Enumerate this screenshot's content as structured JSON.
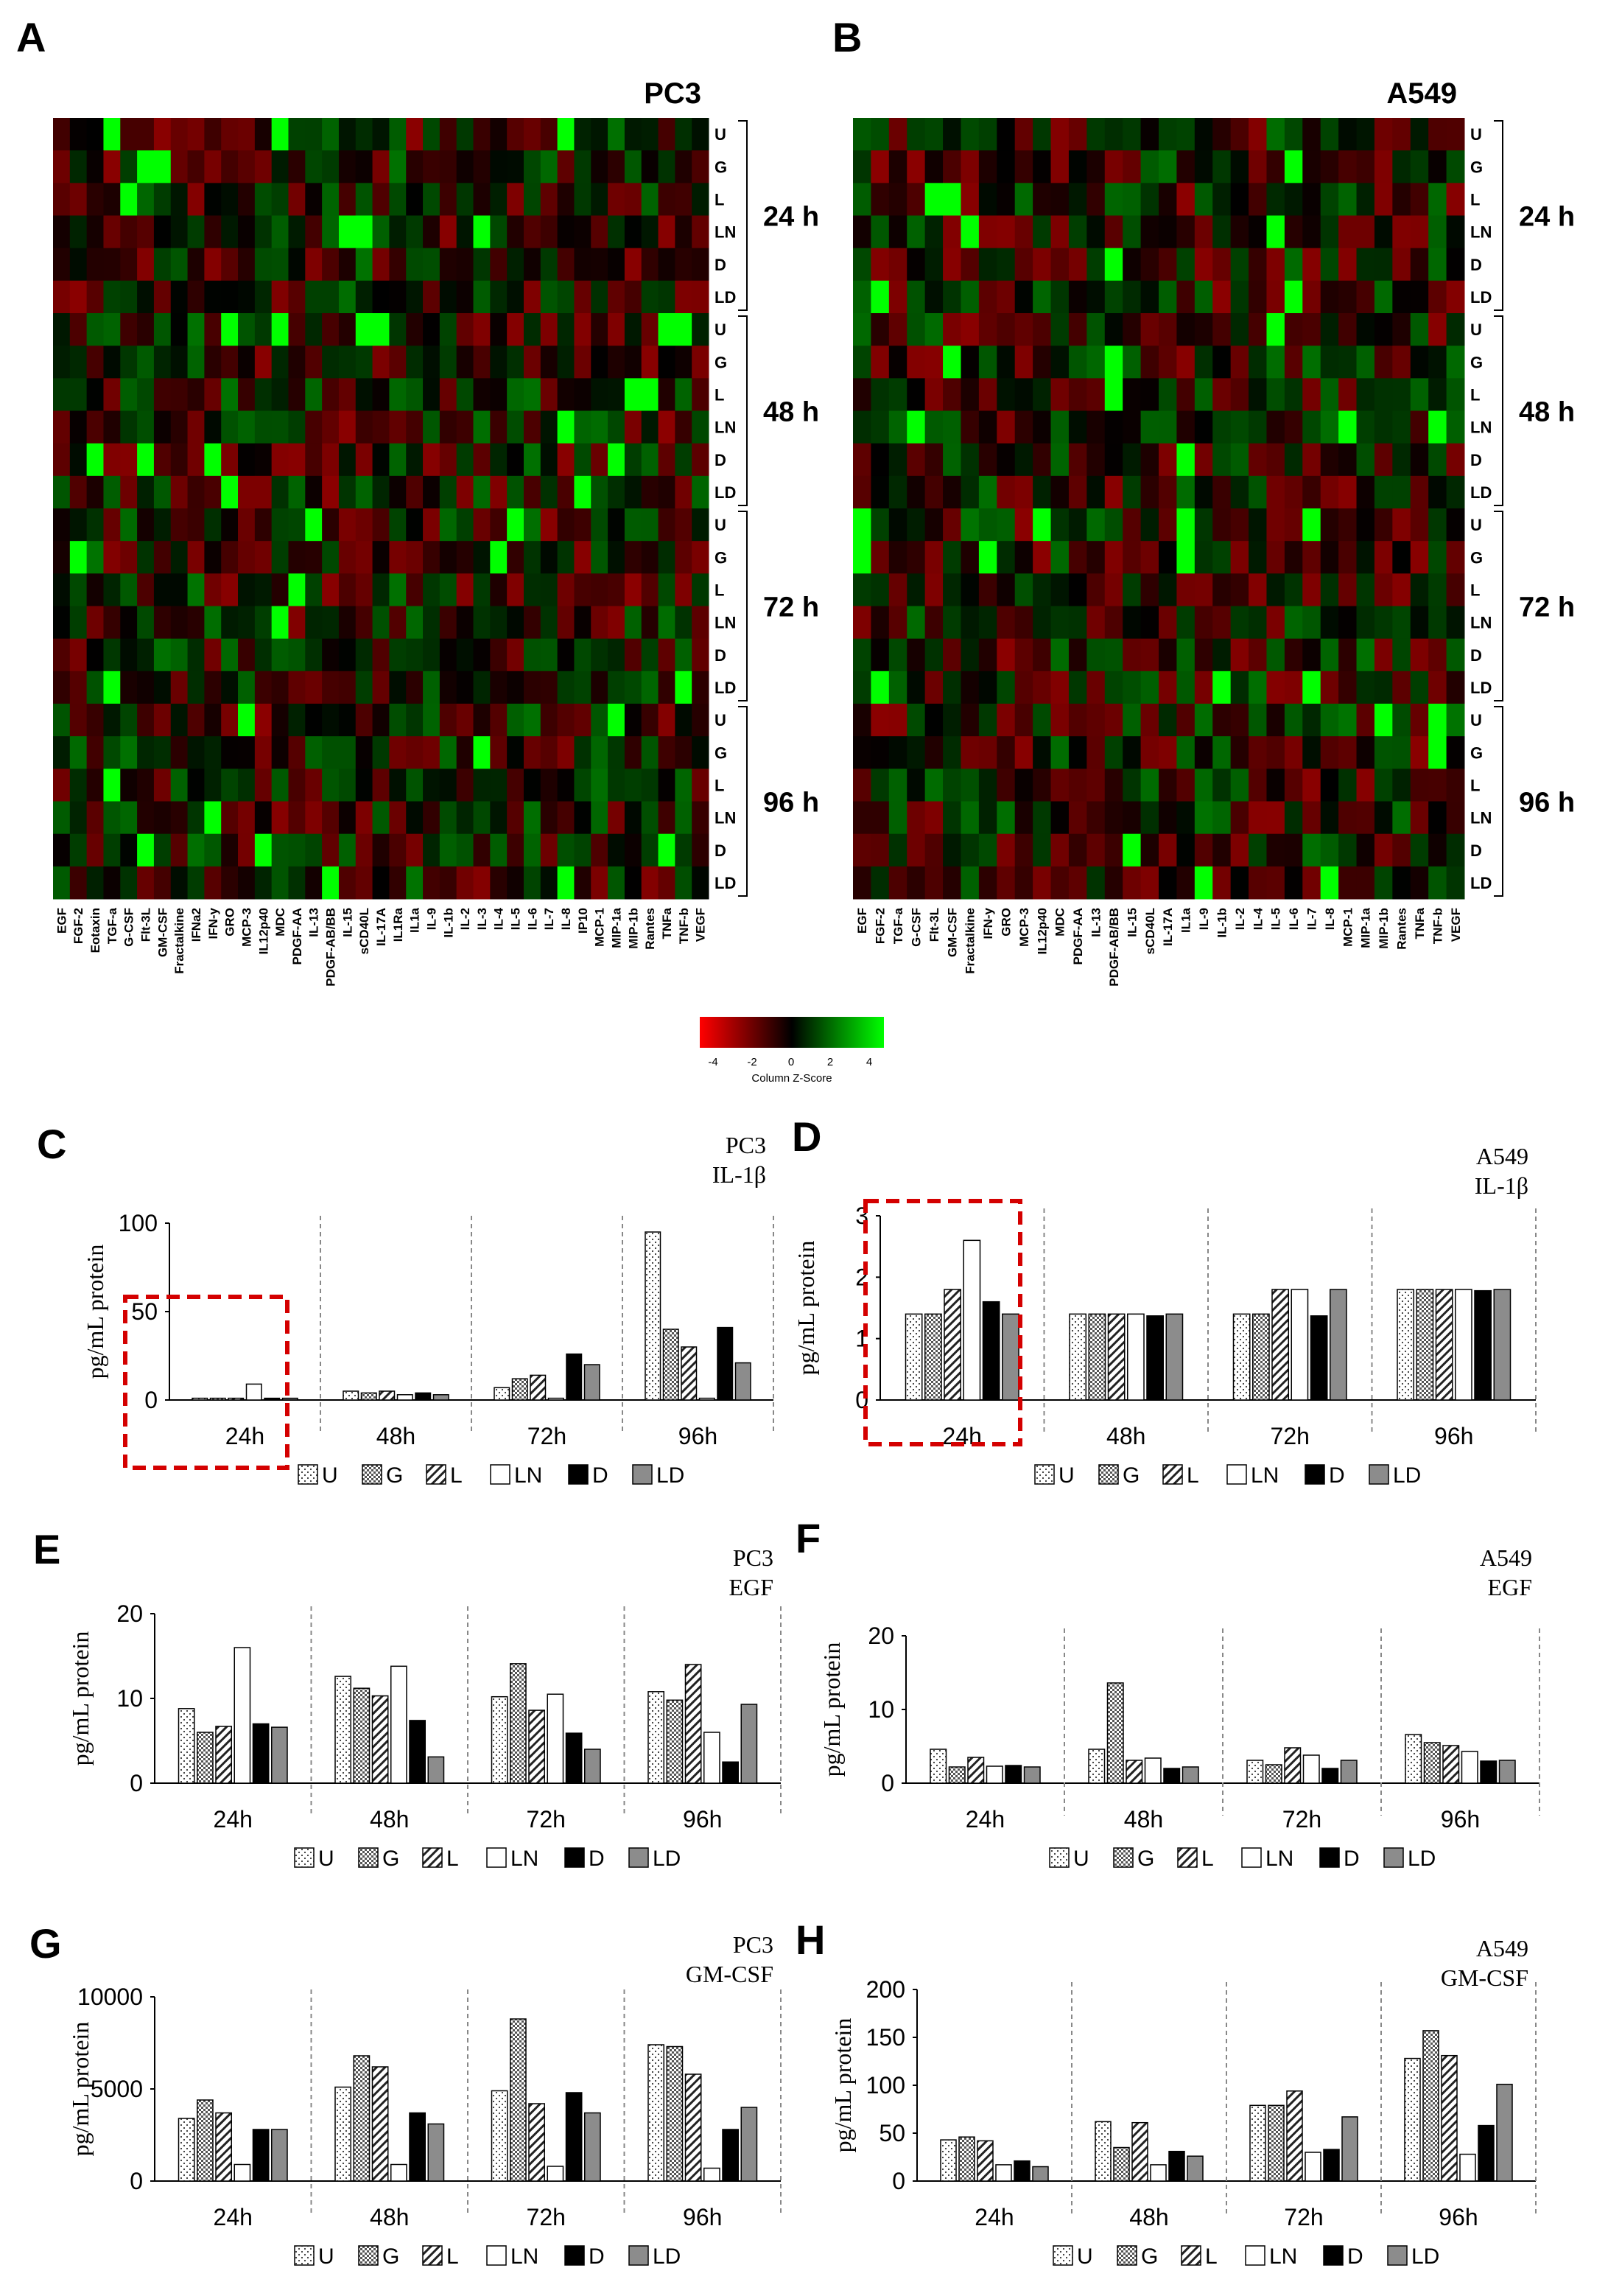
{
  "panel_letters": [
    "A",
    "B",
    "C",
    "D",
    "E",
    "F",
    "G",
    "H"
  ],
  "colors": {
    "low": "#ff0000",
    "mid": "#000000",
    "high": "#00ff00",
    "box": "#d40000",
    "grid_dash": "#888888",
    "gray_bar": "#8c8c8c"
  },
  "legend_labels": [
    "U",
    "G",
    "L",
    "LN",
    "D",
    "LD"
  ],
  "legend_patterns": [
    "dots",
    "checker",
    "hatch",
    "white",
    "black",
    "gray"
  ],
  "colorbar": {
    "ticks": [
      "-4",
      "-2",
      "0",
      "2",
      "4"
    ],
    "label": "Column Z-Score"
  },
  "chart_data": [
    {
      "type": "heatmap",
      "panel": "A",
      "title": "PC3",
      "row_labels": [
        "U",
        "G",
        "L",
        "LN",
        "D",
        "LD"
      ],
      "group_labels": [
        "24 h",
        "48 h",
        "72 h",
        "96 h"
      ],
      "columns": [
        "EGF",
        "FGF-2",
        "Eotaxin",
        "TGF-a",
        "G-CSF",
        "Flt-3L",
        "GM-CSF",
        "Fractalkine",
        "IFNa2",
        "IFN-y",
        "GRO",
        "MCP-3",
        "IL12p40",
        "MDC",
        "PDGF-AA",
        "IL-13",
        "PDGF-AB/BB",
        "IL-15",
        "sCD40L",
        "IL-17A",
        "IL1Ra",
        "IL1a",
        "IL-9",
        "IL-1b",
        "IL-2",
        "IL-3",
        "IL-4",
        "IL-5",
        "IL-6",
        "IL-7",
        "IL-8",
        "IP10",
        "MCP-1",
        "MIP-1a",
        "MIP-1b",
        "Rantes",
        "TNFa",
        "TNF-b",
        "VEGF"
      ]
    },
    {
      "type": "heatmap",
      "panel": "B",
      "title": "A549",
      "row_labels": [
        "U",
        "G",
        "L",
        "LN",
        "D",
        "LD"
      ],
      "group_labels": [
        "24 h",
        "48 h",
        "72 h",
        "96 h"
      ],
      "columns": [
        "EGF",
        "FGF-2",
        "TGF-a",
        "G-CSF",
        "Flt-3L",
        "GM-CSF",
        "Fractalkine",
        "IFN-y",
        "GRO",
        "MCP-3",
        "IL12p40",
        "MDC",
        "PDGF-AA",
        "IL-13",
        "PDGF-AB/BB",
        "IL-15",
        "sCD40L",
        "IL-17A",
        "IL1a",
        "IL-9",
        "IL-1b",
        "IL-2",
        "IL-4",
        "IL-5",
        "IL-6",
        "IL-7",
        "IL-8",
        "MCP-1",
        "MIP-1a",
        "MIP-1b",
        "Rantes",
        "TNFa",
        "TNF-b",
        "VEGF"
      ]
    },
    {
      "type": "bar",
      "panel": "C",
      "title": [
        "PC3",
        "IL-1β"
      ],
      "ylabel": "pg/mL protein",
      "ylim": [
        0,
        100
      ],
      "yticks": [
        "0",
        "50",
        "100"
      ],
      "categories": [
        "24h",
        "48h",
        "72h",
        "96h"
      ],
      "series_names": [
        "U",
        "G",
        "L",
        "LN",
        "D",
        "LD"
      ],
      "values": [
        [
          1,
          1,
          1,
          9,
          1,
          1
        ],
        [
          5,
          4,
          5,
          3,
          4,
          3
        ],
        [
          7,
          12,
          14,
          1,
          26,
          20
        ],
        [
          95,
          40,
          30,
          1,
          41,
          21
        ]
      ],
      "highlight": "24h"
    },
    {
      "type": "bar",
      "panel": "D",
      "title": [
        "A549",
        "IL-1β"
      ],
      "ylabel": "pg/mL protein",
      "ylim": [
        0,
        3
      ],
      "yticks": [
        "0",
        "1",
        "2",
        "3"
      ],
      "categories": [
        "24h",
        "48h",
        "72h",
        "96h"
      ],
      "series_names": [
        "U",
        "G",
        "L",
        "LN",
        "D",
        "LD"
      ],
      "values": [
        [
          1.4,
          1.4,
          1.8,
          2.6,
          1.6,
          1.4
        ],
        [
          1.4,
          1.4,
          1.4,
          1.4,
          1.37,
          1.4
        ],
        [
          1.4,
          1.4,
          1.8,
          1.8,
          1.37,
          1.8
        ],
        [
          1.8,
          1.8,
          1.8,
          1.8,
          1.78,
          1.8
        ]
      ],
      "highlight": "24h"
    },
    {
      "type": "bar",
      "panel": "E",
      "title": [
        "PC3",
        "EGF"
      ],
      "ylabel": "pg/mL protein",
      "ylim": [
        0,
        20
      ],
      "yticks": [
        "0",
        "10",
        "20"
      ],
      "categories": [
        "24h",
        "48h",
        "72h",
        "96h"
      ],
      "series_names": [
        "U",
        "G",
        "L",
        "LN",
        "D",
        "LD"
      ],
      "values": [
        [
          8.8,
          6,
          6.7,
          16,
          7,
          6.6
        ],
        [
          12.6,
          11.2,
          10.3,
          13.8,
          7.4,
          3.1
        ],
        [
          10.2,
          14.1,
          8.6,
          10.5,
          5.9,
          4
        ],
        [
          10.8,
          9.8,
          14,
          6,
          2.5,
          9.3
        ]
      ]
    },
    {
      "type": "bar",
      "panel": "F",
      "title": [
        "A549",
        "EGF"
      ],
      "ylabel": "pg/mL protein",
      "ylim": [
        0,
        20
      ],
      "yticks": [
        "0",
        "10",
        "20"
      ],
      "categories": [
        "24h",
        "48h",
        "72h",
        "96h"
      ],
      "series_names": [
        "U",
        "G",
        "L",
        "LN",
        "D",
        "LD"
      ],
      "values": [
        [
          4.6,
          2.2,
          3.5,
          2.3,
          2.4,
          2.2
        ],
        [
          4.6,
          13.6,
          3.1,
          3.4,
          2,
          2.2
        ],
        [
          3.1,
          2.5,
          4.8,
          3.8,
          2,
          3.1
        ],
        [
          6.6,
          5.5,
          5.1,
          4.3,
          3,
          3.1
        ]
      ]
    },
    {
      "type": "bar",
      "panel": "G",
      "title": [
        "PC3",
        "GM-CSF"
      ],
      "ylabel": "pg/mL protein",
      "ylim": [
        0,
        10000
      ],
      "yticks": [
        "0",
        "5000",
        "10000"
      ],
      "categories": [
        "24h",
        "48h",
        "72h",
        "96h"
      ],
      "series_names": [
        "U",
        "G",
        "L",
        "LN",
        "D",
        "LD"
      ],
      "values": [
        [
          3400,
          4400,
          3700,
          900,
          2800,
          2800
        ],
        [
          5100,
          6800,
          6200,
          900,
          3700,
          3100
        ],
        [
          4900,
          8800,
          4200,
          800,
          4800,
          3700
        ],
        [
          7400,
          7300,
          5800,
          700,
          2800,
          4000
        ]
      ]
    },
    {
      "type": "bar",
      "panel": "H",
      "title": [
        "A549",
        "GM-CSF"
      ],
      "ylabel": "pg/mL protein",
      "ylim": [
        0,
        200
      ],
      "yticks": [
        "0",
        "50",
        "100",
        "150",
        "200"
      ],
      "categories": [
        "24h",
        "48h",
        "72h",
        "96h"
      ],
      "series_names": [
        "U",
        "G",
        "L",
        "LN",
        "D",
        "LD"
      ],
      "values": [
        [
          43,
          46,
          42,
          17,
          21,
          15
        ],
        [
          62,
          35,
          61,
          17,
          31,
          26
        ],
        [
          79,
          79,
          94,
          30,
          33,
          67
        ],
        [
          128,
          157,
          131,
          28,
          58,
          101
        ]
      ]
    }
  ]
}
